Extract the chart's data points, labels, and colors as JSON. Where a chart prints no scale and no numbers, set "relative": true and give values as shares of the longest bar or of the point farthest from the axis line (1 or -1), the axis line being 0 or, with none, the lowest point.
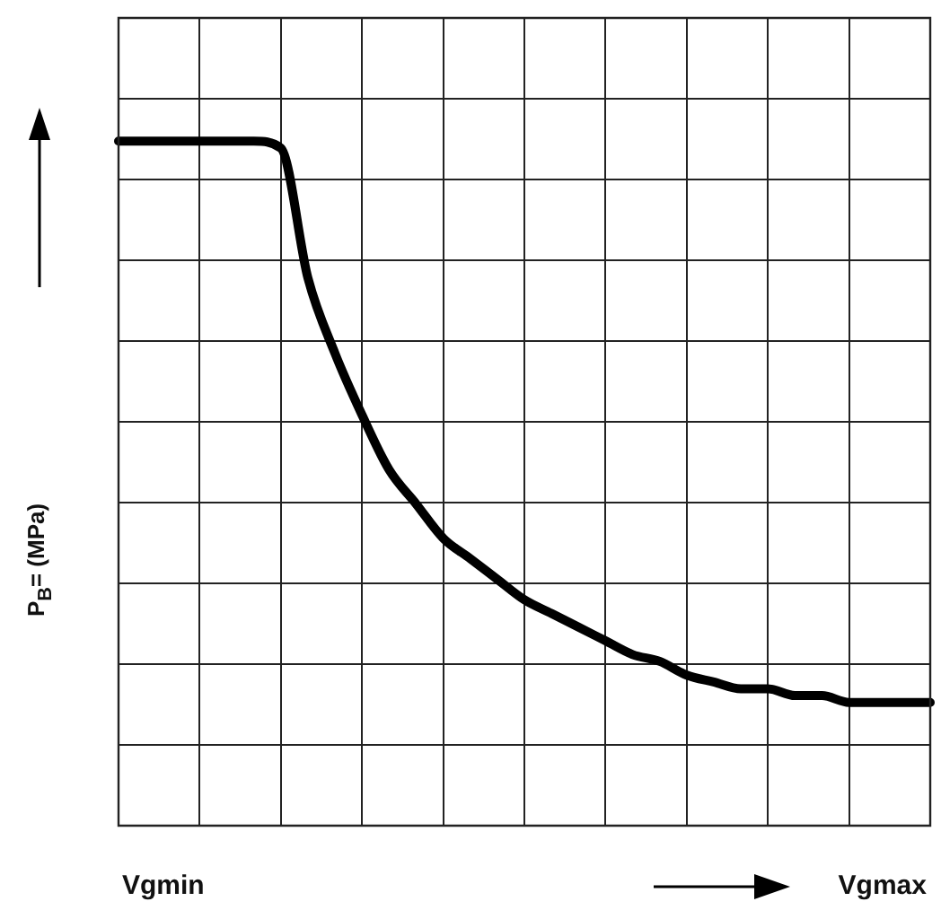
{
  "chart_data": {
    "type": "line",
    "relative": true,
    "ylabel": "P$_{B}$= (MPa)",
    "xlabel": "Vgmax",
    "annotations": [
      "Vgmin"
    ],
    "grid": true,
    "color": "#000000",
    "categories": [
      null,
      null,
      null,
      null,
      null,
      null,
      null,
      null,
      null,
      null,
      null,
      null,
      null,
      null,
      null,
      null,
      null,
      null,
      null,
      null,
      null,
      null,
      null,
      null,
      null,
      null,
      null,
      null,
      null,
      null,
      null
    ],
    "values": [
      1.0,
      1.0,
      1.0,
      1.0,
      1.0,
      1.0,
      0.99,
      0.8,
      0.69,
      0.6,
      0.52,
      0.47,
      0.42,
      0.39,
      0.36,
      0.33,
      0.31,
      0.29,
      0.27,
      0.25,
      0.24,
      0.22,
      0.21,
      0.2,
      0.2,
      0.19,
      0.19,
      0.18,
      0.18,
      0.18,
      0.18
    ]
  }
}
